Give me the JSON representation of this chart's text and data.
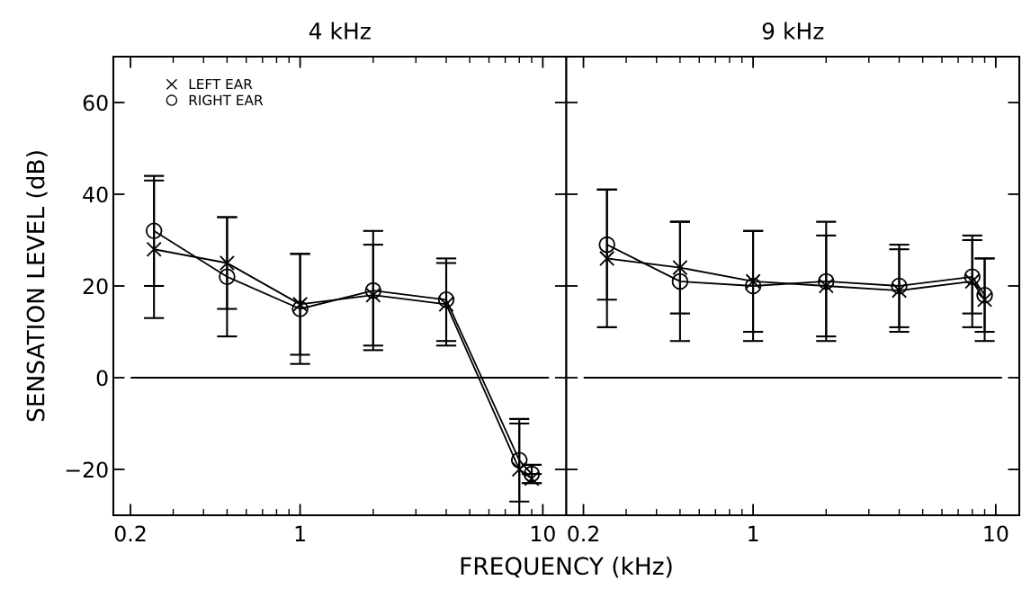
{
  "chart_data": [
    {
      "type": "line",
      "title": "4 kHz",
      "xlabel": "FREQUENCY (kHz)",
      "ylabel": "SENSATION LEVEL (dB)",
      "log": "x",
      "xlim": [
        0.17,
        12.5
      ],
      "xticks": [
        0.2,
        1,
        10
      ],
      "ylim": [
        -30,
        70
      ],
      "yticks": [
        -20,
        0,
        20,
        40,
        60
      ],
      "grid": false,
      "legend": "top left",
      "line_style": "solid",
      "x": [
        0.25,
        0.5,
        1,
        2,
        4,
        8,
        9
      ],
      "series": [
        {
          "name": "LEFT EAR",
          "color": "#000000",
          "marker": "cross",
          "values": [
            28,
            25,
            16,
            18,
            16,
            -20,
            -22
          ],
          "errors": [
            15,
            10,
            11,
            11,
            9,
            10,
            1
          ]
        },
        {
          "name": "RIGHT EAR",
          "color": "#000000",
          "marker": "circle",
          "values": [
            32,
            22,
            15,
            19,
            17,
            -18,
            -21
          ],
          "errors": [
            12,
            13,
            12,
            13,
            9,
            9,
            2
          ]
        }
      ],
      "ref_lines": [
        {
          "axis": "y",
          "value": 0,
          "color": "#000000"
        }
      ]
    },
    {
      "type": "line",
      "title": "9 kHz",
      "log": "x",
      "xlim": [
        0.17,
        12.5
      ],
      "xticks": [
        0.2,
        1,
        10
      ],
      "ylim": [
        -30,
        70
      ],
      "yticks": [
        -20,
        0,
        20,
        40,
        60
      ],
      "tick_labels": "x",
      "grid": false,
      "line_style": "solid",
      "x": [
        0.25,
        0.5,
        1,
        2,
        4,
        8,
        9
      ],
      "series": [
        {
          "color": "#000000",
          "marker": "cross",
          "values": [
            26,
            24,
            21,
            20,
            19,
            21,
            17
          ],
          "errors": [
            15,
            10,
            11,
            11,
            9,
            10,
            9
          ]
        },
        {
          "color": "#000000",
          "marker": "circle",
          "values": [
            29,
            21,
            20,
            21,
            20,
            22,
            18
          ],
          "errors": [
            12,
            13,
            12,
            13,
            9,
            8,
            8
          ]
        }
      ],
      "ref_lines": [
        {
          "axis": "y",
          "value": 0,
          "color": "#000000"
        }
      ]
    }
  ]
}
